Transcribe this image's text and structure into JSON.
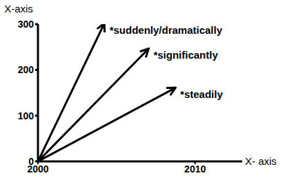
{
  "chart_data": {
    "type": "line",
    "x_label": "X- axis",
    "y_label": "X-axis",
    "xlim": [
      2000,
      2013
    ],
    "xticks": [
      2000,
      2010
    ],
    "ylim": [
      0,
      300
    ],
    "yticks": [
      0,
      100,
      200,
      300
    ],
    "grid": false,
    "color": "#000000",
    "marker": "arrow",
    "series": [
      {
        "name": "*suddenly/dramatically",
        "x": [
          2000,
          2004.2
        ],
        "values": [
          0,
          300
        ]
      },
      {
        "name": "*significantly",
        "x": [
          2000,
          2007
        ],
        "values": [
          0,
          245
        ]
      },
      {
        "name": "*steadily",
        "x": [
          2000,
          2008.7
        ],
        "values": [
          0,
          160
        ]
      }
    ]
  }
}
